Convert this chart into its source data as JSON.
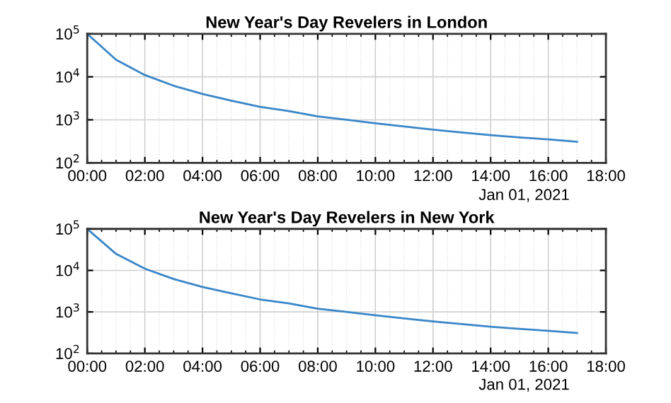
{
  "chart_data": [
    {
      "type": "line",
      "title": "New Year's Day Revelers in London",
      "x": [
        0,
        1,
        2,
        3,
        4,
        5,
        6,
        7,
        8,
        9,
        10,
        11,
        12,
        13,
        14,
        15,
        16,
        17
      ],
      "series": [
        {
          "color": "#3a86c8",
          "values": [
            100000,
            25000,
            11000,
            6200,
            4000,
            2800,
            2000,
            1600,
            1200,
            1000,
            830,
            700,
            590,
            510,
            440,
            390,
            350,
            310
          ]
        }
      ],
      "log": "y",
      "xlim": [
        0,
        18
      ],
      "ylim": [
        100,
        100000
      ],
      "xticks": [
        {
          "value": 0,
          "label": "00:00"
        },
        {
          "value": 2,
          "label": "02:00"
        },
        {
          "value": 4,
          "label": "04:00"
        },
        {
          "value": 6,
          "label": "06:00"
        },
        {
          "value": 8,
          "label": "08:00"
        },
        {
          "value": 10,
          "label": "10:00"
        },
        {
          "value": 12,
          "label": "12:00"
        },
        {
          "value": 14,
          "label": "14:00"
        },
        {
          "value": 16,
          "label": "16:00"
        },
        {
          "value": 18,
          "label": "18:00"
        }
      ],
      "yticks": [
        {
          "value": 100,
          "label": "10$^{2}$"
        },
        {
          "value": 1000,
          "label": "10$^{3}$"
        },
        {
          "value": 10000,
          "label": "10$^{4}$"
        },
        {
          "value": 100000,
          "label": "10$^{5}$"
        }
      ],
      "grid": true,
      "annotations": [
        "Jan 01, 2021"
      ]
    },
    {
      "type": "line",
      "title": "New Year's Day Revelers in New York",
      "x": [
        0,
        1,
        2,
        3,
        4,
        5,
        6,
        7,
        8,
        9,
        10,
        11,
        12,
        13,
        14,
        15,
        16,
        17
      ],
      "series": [
        {
          "color": "#3a86c8",
          "values": [
            100000,
            25000,
            11000,
            6200,
            4000,
            2800,
            2000,
            1600,
            1200,
            1000,
            830,
            700,
            590,
            510,
            440,
            390,
            350,
            310
          ]
        }
      ],
      "log": "y",
      "xlim": [
        0,
        18
      ],
      "ylim": [
        100,
        100000
      ],
      "xticks": [
        {
          "value": 0,
          "label": "00:00"
        },
        {
          "value": 2,
          "label": "02:00"
        },
        {
          "value": 4,
          "label": "04:00"
        },
        {
          "value": 6,
          "label": "06:00"
        },
        {
          "value": 8,
          "label": "08:00"
        },
        {
          "value": 10,
          "label": "10:00"
        },
        {
          "value": 12,
          "label": "12:00"
        },
        {
          "value": 14,
          "label": "14:00"
        },
        {
          "value": 16,
          "label": "16:00"
        },
        {
          "value": 18,
          "label": "18:00"
        }
      ],
      "yticks": [
        {
          "value": 100,
          "label": "10$^{2}$"
        },
        {
          "value": 1000,
          "label": "10$^{3}$"
        },
        {
          "value": 10000,
          "label": "10$^{4}$"
        },
        {
          "value": 100000,
          "label": "10$^{5}$"
        }
      ],
      "grid": true,
      "annotations": [
        "Jan 01, 2021"
      ]
    }
  ]
}
